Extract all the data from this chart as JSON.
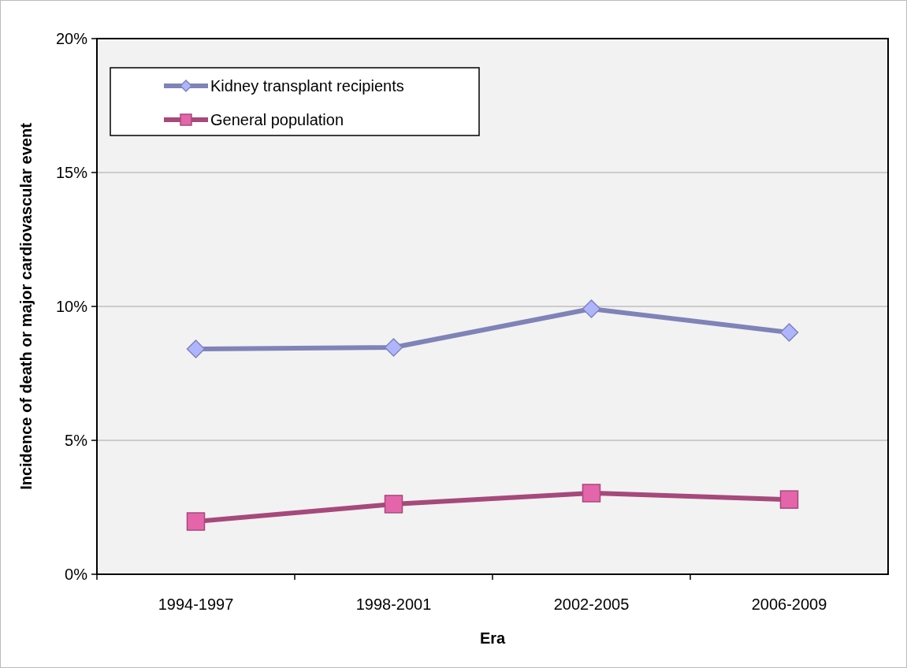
{
  "chart_data": {
    "type": "line",
    "xlabel": "Era",
    "ylabel": "Incidence of death or major cardiovascular event",
    "categories": [
      "1994-1997",
      "1998-2001",
      "2002-2005",
      "2006-2009"
    ],
    "series": [
      {
        "name": "Kidney transplant recipients",
        "color": "#7f83b7",
        "marker": "diamond",
        "values": [
          8.41,
          8.47,
          9.91,
          9.03
        ]
      },
      {
        "name": "General population",
        "color": "#a6497b",
        "marker": "square",
        "values": [
          1.97,
          2.62,
          3.03,
          2.79
        ]
      }
    ],
    "ylim": [
      0,
      20
    ],
    "yticks": [
      {
        "value": 0,
        "label": "0%"
      },
      {
        "value": 5,
        "label": "5%"
      },
      {
        "value": 10,
        "label": "10%"
      },
      {
        "value": 15,
        "label": "15%"
      },
      {
        "value": 20,
        "label": "20%"
      }
    ],
    "grid": "y",
    "legend": "top left",
    "line_style": "solid"
  }
}
